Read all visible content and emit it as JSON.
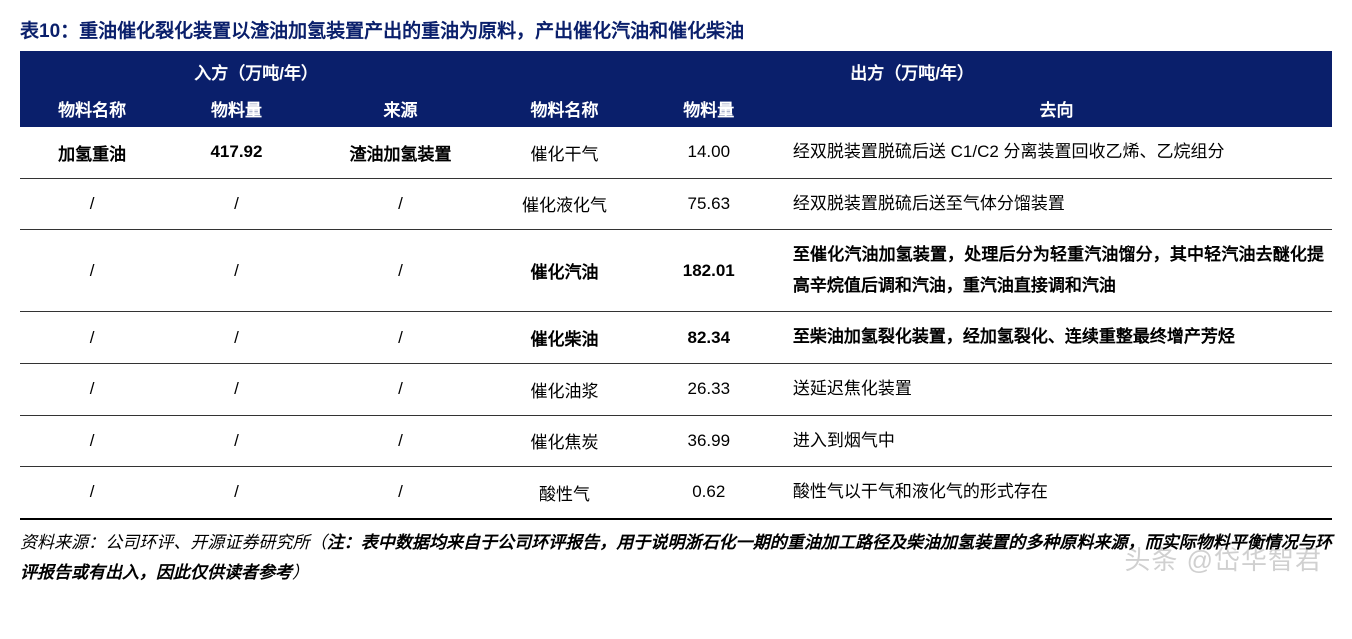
{
  "title": "表10：重油催化裂化装置以渣油加氢装置产出的重油为原料，产出催化汽油和催化柴油",
  "header": {
    "group_in": "入方（万吨/年）",
    "group_out": "出方（万吨/年）",
    "cols": {
      "in_name": "物料名称",
      "in_amount": "物料量",
      "in_source": "来源",
      "out_name": "物料名称",
      "out_amount": "物料量",
      "out_dest": "去向"
    }
  },
  "rows": [
    {
      "in_name": "加氢重油",
      "in_amount": "417.92",
      "in_source": "渣油加氢装置",
      "out_name": "催化干气",
      "out_amount": "14.00",
      "out_dest": "经双脱装置脱硫后送 C1/C2 分离装置回收乙烯、乙烷组分",
      "bold_in": true,
      "bold_out": false
    },
    {
      "in_name": "/",
      "in_amount": "/",
      "in_source": "/",
      "out_name": "催化液化气",
      "out_amount": "75.63",
      "out_dest": "经双脱装置脱硫后送至气体分馏装置",
      "bold_in": false,
      "bold_out": false
    },
    {
      "in_name": "/",
      "in_amount": "/",
      "in_source": "/",
      "out_name": "催化汽油",
      "out_amount": "182.01",
      "out_dest": "至催化汽油加氢装置，处理后分为轻重汽油馏分，其中轻汽油去醚化提高辛烷值后调和汽油，重汽油直接调和汽油",
      "bold_in": false,
      "bold_out": true
    },
    {
      "in_name": "/",
      "in_amount": "/",
      "in_source": "/",
      "out_name": "催化柴油",
      "out_amount": "82.34",
      "out_dest": "至柴油加氢裂化装置，经加氢裂化、连续重整最终增产芳烃",
      "bold_in": false,
      "bold_out": true
    },
    {
      "in_name": "/",
      "in_amount": "/",
      "in_source": "/",
      "out_name": "催化油浆",
      "out_amount": "26.33",
      "out_dest": "送延迟焦化装置",
      "bold_in": false,
      "bold_out": false
    },
    {
      "in_name": "/",
      "in_amount": "/",
      "in_source": "/",
      "out_name": "催化焦炭",
      "out_amount": "36.99",
      "out_dest": "进入到烟气中",
      "bold_in": false,
      "bold_out": false
    },
    {
      "in_name": "/",
      "in_amount": "/",
      "in_source": "/",
      "out_name": "酸性气",
      "out_amount": "0.62",
      "out_dest": "酸性气以干气和液化气的形式存在",
      "bold_in": false,
      "bold_out": false
    }
  ],
  "footer": {
    "prefix": "资料来源：公司环评、开源证券研究所（",
    "note": "注：表中数据均来自于公司环评报告，用于说明浙石化一期的重油加工路径及柴油加氢装置的多种原料来源，而实际物料平衡情况与环评报告或有出入，因此仅供读者参考",
    "suffix": "）"
  },
  "watermark": "头条 @岱华智君",
  "colors": {
    "header_bg": "#0a1f6b",
    "header_text": "#ffffff",
    "title_color": "#0a1f6b",
    "border": "#333333"
  }
}
